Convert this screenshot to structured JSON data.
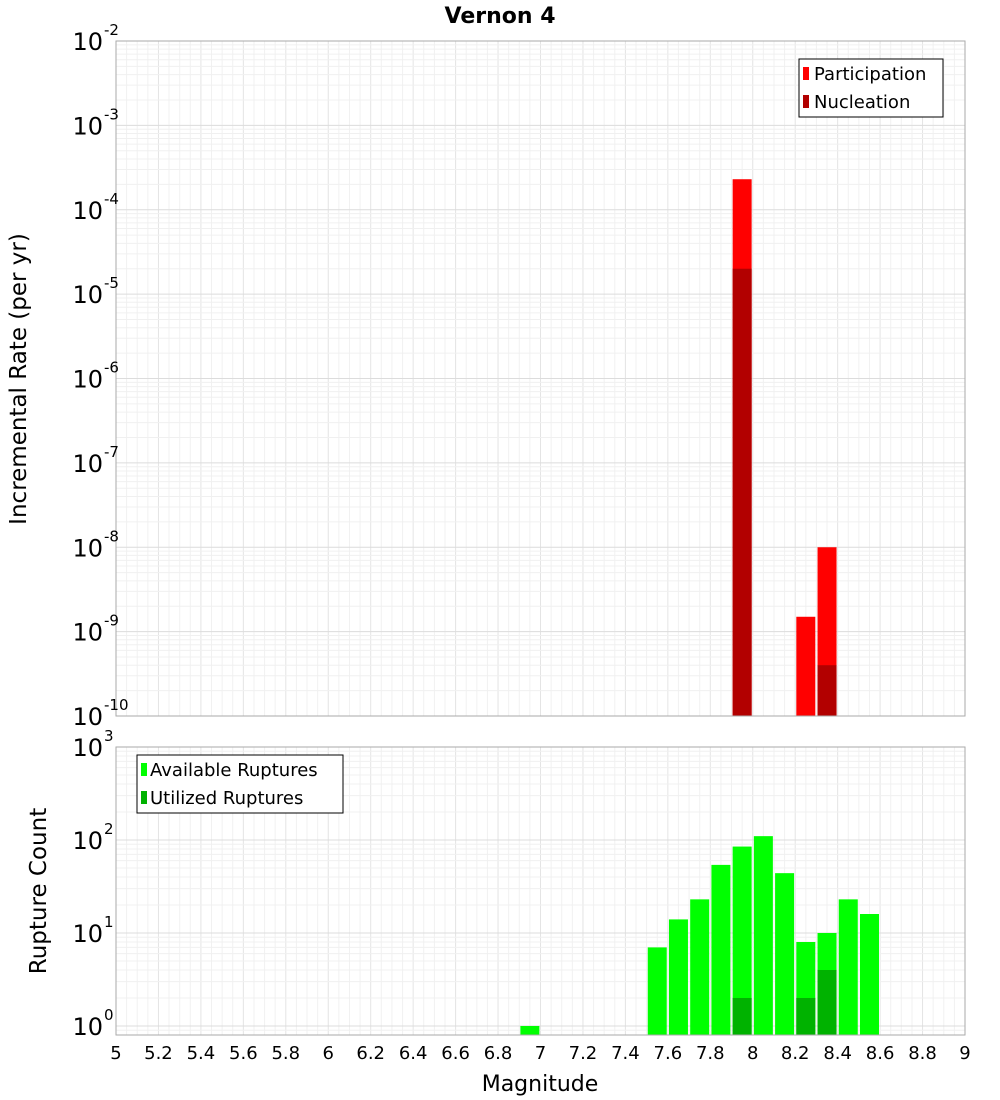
{
  "chart_data": [
    {
      "type": "bar",
      "title": "Vernon 4",
      "xlabel": "",
      "ylabel": "Incremental Rate (per yr)",
      "y_scale": "log",
      "ylim": [
        1e-10,
        0.01
      ],
      "xlim": [
        5,
        9
      ],
      "y_ticks": [
        {
          "base": "10",
          "exp": "-10",
          "value": 1e-10
        },
        {
          "base": "10",
          "exp": "-9",
          "value": 1e-09
        },
        {
          "base": "10",
          "exp": "-8",
          "value": 1e-08
        },
        {
          "base": "10",
          "exp": "-7",
          "value": 1e-07
        },
        {
          "base": "10",
          "exp": "-6",
          "value": 1e-06
        },
        {
          "base": "10",
          "exp": "-5",
          "value": 1e-05
        },
        {
          "base": "10",
          "exp": "-4",
          "value": 0.0001
        },
        {
          "base": "10",
          "exp": "-3",
          "value": 0.001
        },
        {
          "base": "10",
          "exp": "-2",
          "value": 0.01
        }
      ],
      "grid": true,
      "legend_position": "top-right",
      "series": [
        {
          "name": "Participation",
          "color": "#ff0000",
          "x": [
            7.95,
            8.25,
            8.35
          ],
          "values": [
            0.00023,
            1.5e-09,
            1e-08
          ]
        },
        {
          "name": "Nucleation",
          "color": "#b20000",
          "x": [
            7.95,
            8.35
          ],
          "values": [
            2e-05,
            4e-10
          ]
        }
      ]
    },
    {
      "type": "bar",
      "title": "",
      "xlabel": "Magnitude",
      "ylabel": "Rupture Count",
      "y_scale": "log",
      "ylim": [
        0.8,
        1000
      ],
      "xlim": [
        5,
        9
      ],
      "x_ticks": [
        "5",
        "5.2",
        "5.4",
        "5.6",
        "5.8",
        "6",
        "6.2",
        "6.4",
        "6.6",
        "6.8",
        "7",
        "7.2",
        "7.4",
        "7.6",
        "7.8",
        "8",
        "8.2",
        "8.4",
        "8.6",
        "8.8",
        "9"
      ],
      "y_ticks": [
        {
          "base": "10",
          "exp": "0",
          "value": 1
        },
        {
          "base": "10",
          "exp": "1",
          "value": 10
        },
        {
          "base": "10",
          "exp": "2",
          "value": 100
        },
        {
          "base": "10",
          "exp": "3",
          "value": 1000
        }
      ],
      "grid": true,
      "legend_position": "top-left",
      "series": [
        {
          "name": "Available Ruptures",
          "color": "#00ff00",
          "x": [
            6.95,
            7.55,
            7.65,
            7.75,
            7.85,
            7.95,
            8.05,
            8.15,
            8.25,
            8.35,
            8.45,
            8.55
          ],
          "values": [
            1,
            7,
            14,
            23,
            54,
            85,
            110,
            44,
            8,
            10,
            23,
            16
          ]
        },
        {
          "name": "Utilized Ruptures",
          "color": "#00b200",
          "x": [
            7.95,
            8.25,
            8.35
          ],
          "values": [
            2,
            2,
            4
          ]
        }
      ]
    }
  ]
}
